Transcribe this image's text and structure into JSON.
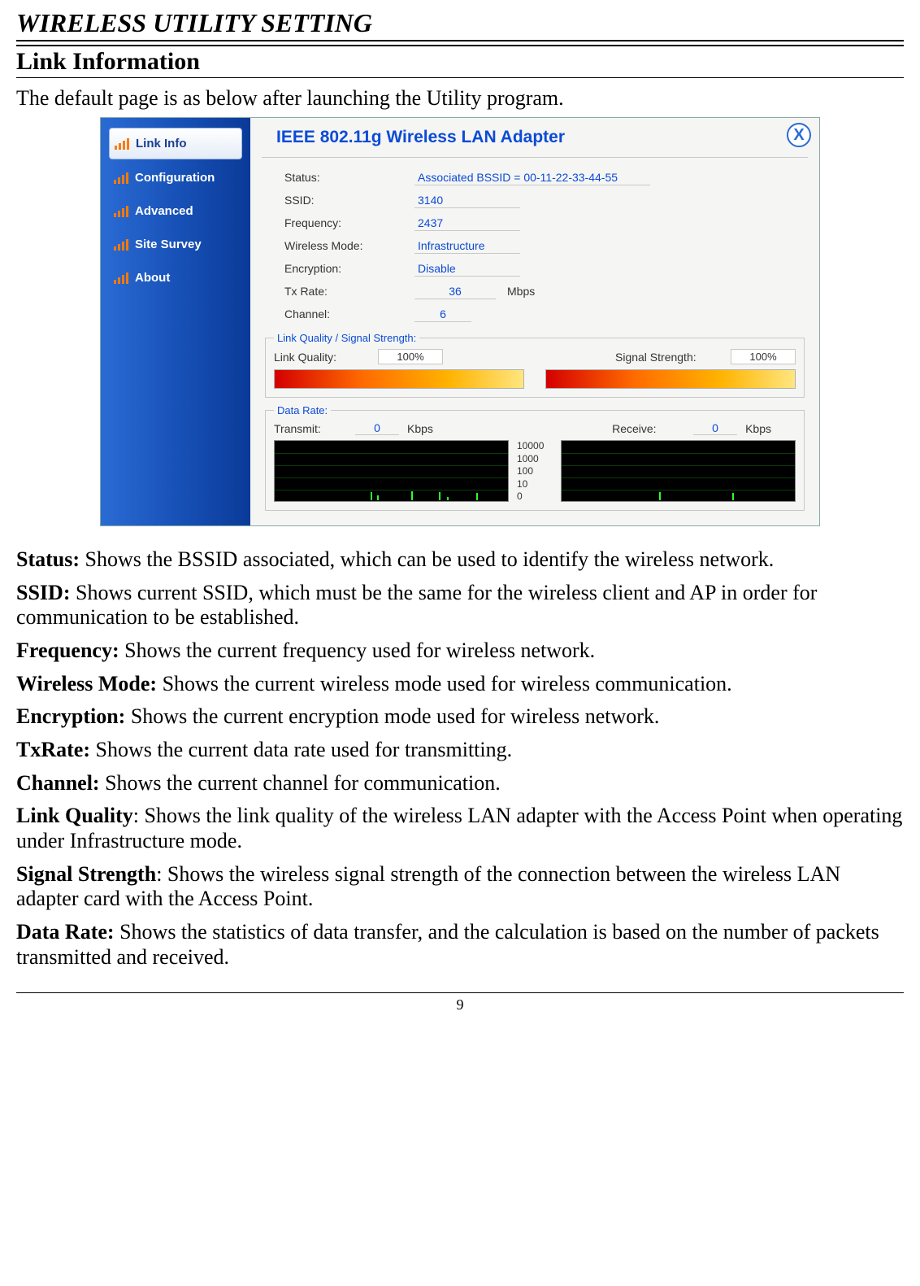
{
  "page": {
    "h1": "WIRELESS UTILITY SETTING",
    "h2": "Link Information",
    "intro": "The default page is as below after launching the Utility program.",
    "page_number": "9"
  },
  "app": {
    "title": "IEEE 802.11g Wireless LAN Adapter",
    "close_glyph": "X",
    "sidebar": [
      {
        "label": "Link Info",
        "name": "sidebar-item-link-info",
        "active": true
      },
      {
        "label": "Configuration",
        "name": "sidebar-item-configuration",
        "active": false
      },
      {
        "label": "Advanced",
        "name": "sidebar-item-advanced",
        "active": false
      },
      {
        "label": "Site Survey",
        "name": "sidebar-item-site-survey",
        "active": false
      },
      {
        "label": "About",
        "name": "sidebar-item-about",
        "active": false
      }
    ],
    "info": {
      "status_label": "Status:",
      "status_value": "Associated BSSID = 00-11-22-33-44-55",
      "ssid_label": "SSID:",
      "ssid_value": "3140",
      "freq_label": "Frequency:",
      "freq_value": "2437",
      "mode_label": "Wireless Mode:",
      "mode_value": "Infrastructure",
      "enc_label": "Encryption:",
      "enc_value": "Disable",
      "tx_label": "Tx Rate:",
      "tx_value": "36",
      "tx_unit": "Mbps",
      "ch_label": "Channel:",
      "ch_value": "6"
    },
    "quality": {
      "legend": "Link Quality / Signal Strength:",
      "lq_label": "Link Quality:",
      "lq_value": "100%",
      "ss_label": "Signal Strength:",
      "ss_value": "100%",
      "bar_gradient_colors": [
        "#d40000",
        "#ff6a00",
        "#ffb300",
        "#ffe680"
      ]
    },
    "datarate": {
      "legend": "Data Rate:",
      "tx_label": "Transmit:",
      "tx_value": "0",
      "rx_label": "Receive:",
      "rx_value": "0",
      "unit": "Kbps",
      "y_ticks": [
        "10000",
        "1000",
        "100",
        "10",
        "0"
      ],
      "graph_bg": "#000000",
      "graph_line_color": "#2bff2b",
      "graph_grid_color": "#0a3d0a"
    },
    "colors": {
      "sidebar_grad": [
        "#2a6bd4",
        "#1852b8",
        "#0a3a98"
      ],
      "accent_text": "#0b4bd6",
      "icon_bar": "#ff7a00"
    }
  },
  "descriptions": [
    {
      "term": "Status:",
      "text": " Shows the BSSID associated, which can be used to identify the wireless network."
    },
    {
      "term": "SSID:",
      "text": " Shows current SSID, which must be the same for the wireless client and AP in order for communication to be established."
    },
    {
      "term": "Frequency:",
      "text": " Shows the current frequency used for wireless network."
    },
    {
      "term": "Wireless Mode:",
      "text": " Shows the current wireless mode used for wireless communication."
    },
    {
      "term": "Encryption:",
      "text": " Shows the current encryption mode used for wireless network."
    },
    {
      "term": "TxRate:",
      "text": " Shows the current data rate used for transmitting."
    },
    {
      "term": "Channel:",
      "text": " Shows the current channel for communication."
    },
    {
      "term": "Link Quality",
      "text": ": Shows the link quality of the wireless LAN adapter with the Access Point when operating under Infrastructure mode."
    },
    {
      "term": "Signal Strength",
      "text": ": Shows the wireless signal strength of the connection between the wireless LAN adapter card with the Access Point."
    },
    {
      "term": "Data Rate:",
      "text": " Shows the statistics of data transfer, and the calculation is based on the number of packets transmitted and received."
    }
  ]
}
